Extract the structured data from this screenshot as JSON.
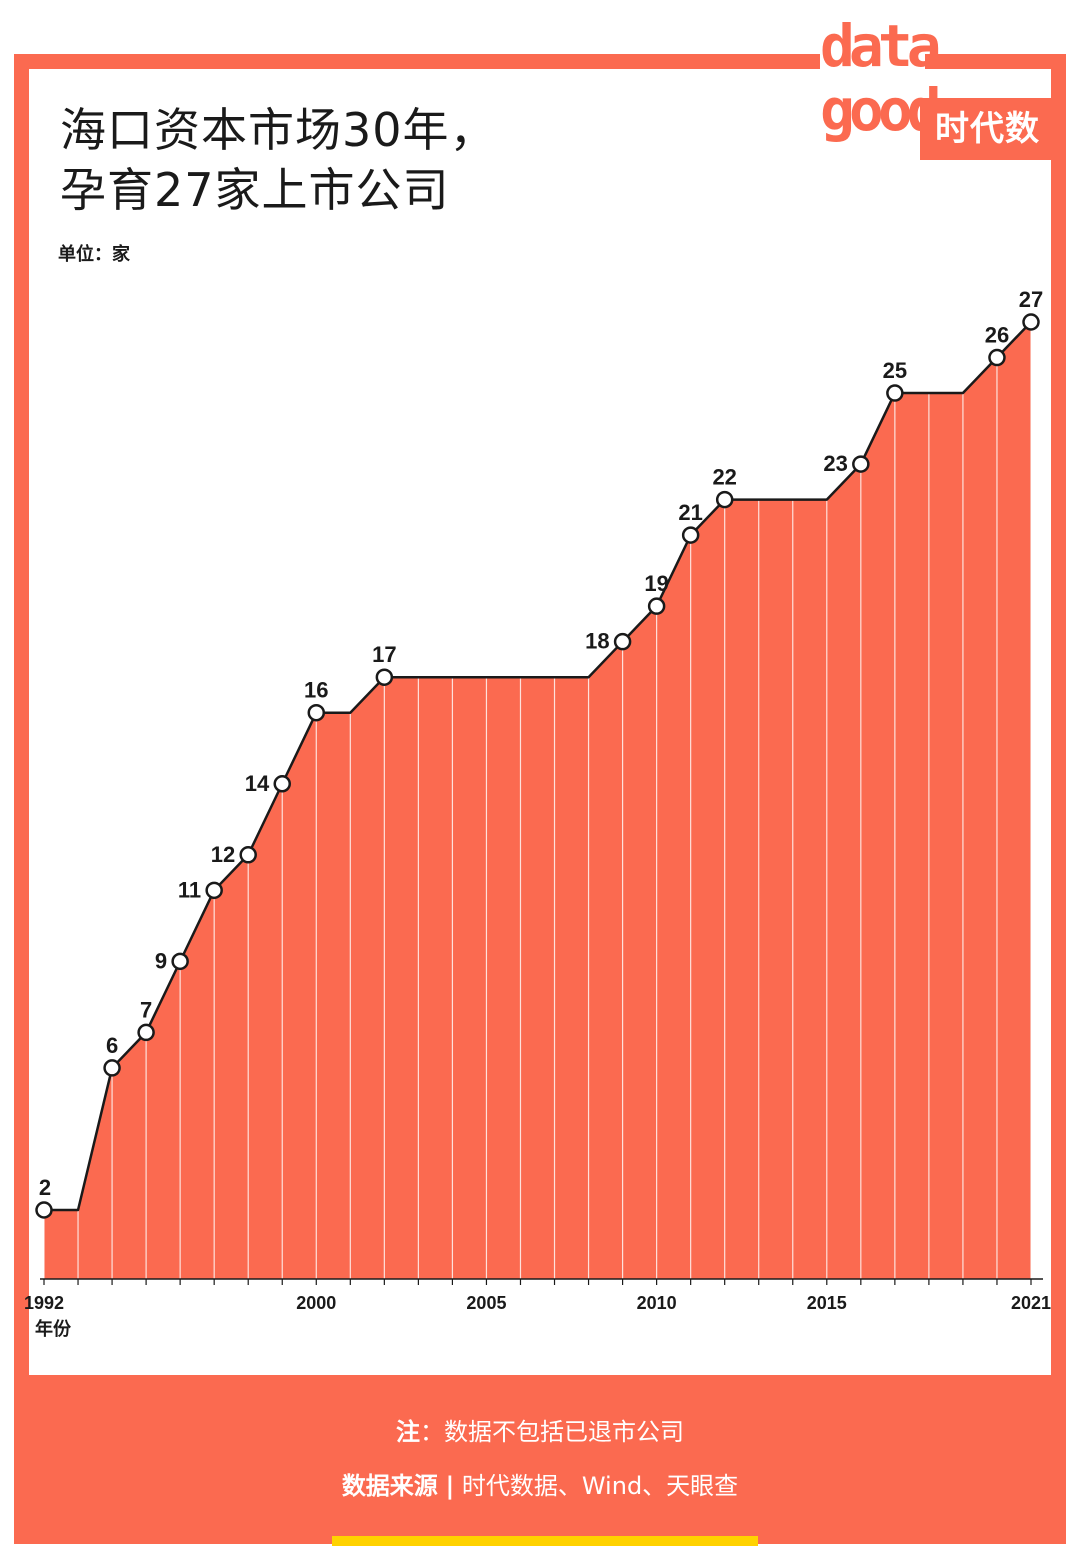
{
  "title": {
    "line1": "海口资本市场30年，",
    "line2": "孕育27家上市公司"
  },
  "unit": "单位：家",
  "logo": {
    "word_top": "data",
    "word_bottom": "good",
    "brand": "时代数据"
  },
  "footer": {
    "note_label": "注",
    "note_sep": "：",
    "note_text": "数据不包括已退市公司",
    "source_label": "数据来源",
    "source_sep": "|",
    "source_text": "时代数据、Wind、天眼查"
  },
  "colors": {
    "accent": "#fb6a50",
    "line": "#1a1a1a",
    "highlight_bar": "#ffd200"
  },
  "chart_data": {
    "type": "area",
    "x": [
      1992,
      1993,
      1994,
      1995,
      1996,
      1997,
      1998,
      1999,
      2000,
      2001,
      2002,
      2003,
      2004,
      2005,
      2006,
      2007,
      2008,
      2009,
      2010,
      2011,
      2012,
      2013,
      2014,
      2015,
      2016,
      2017,
      2018,
      2019,
      2020,
      2021
    ],
    "values": [
      2,
      2,
      6,
      7,
      9,
      11,
      12,
      14,
      16,
      16,
      17,
      17,
      17,
      17,
      17,
      17,
      17,
      18,
      19,
      21,
      22,
      22,
      22,
      22,
      23,
      25,
      25,
      25,
      26,
      27
    ],
    "labeled_years": [
      1992,
      1994,
      1995,
      1996,
      1997,
      1998,
      1999,
      2000,
      2002,
      2009,
      2010,
      2011,
      2012,
      2016,
      2017,
      2020,
      2021
    ],
    "x_ticks": [
      1992,
      2000,
      2005,
      2010,
      2015,
      2021
    ],
    "xlabel": "年份",
    "ylabel": "",
    "ylim": [
      0,
      27
    ],
    "grid": false,
    "legend": "none"
  }
}
